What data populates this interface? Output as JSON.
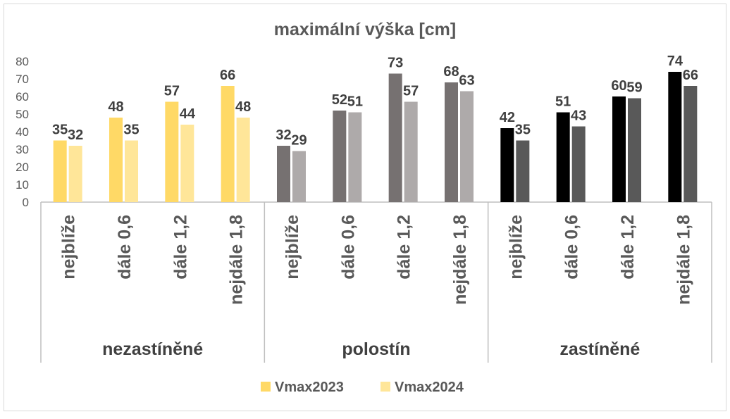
{
  "chart_data": {
    "type": "bar",
    "title": "maximální výška [cm]",
    "xlabel": "",
    "ylabel": "",
    "ylim": [
      0,
      80
    ],
    "yticks": [
      0,
      10,
      20,
      30,
      40,
      50,
      60,
      70,
      80
    ],
    "grid": false,
    "legend_position": "bottom",
    "groups": [
      "nezastíněné",
      "polostín",
      "zastíněné"
    ],
    "categories": [
      "nejblíže",
      "dále 0,6",
      "dále 1,2",
      "nejdále 1,8",
      "nejblíže",
      "dále 0,6",
      "dále 1,2",
      "nejdále 1,8",
      "nejblíže",
      "dále 0,6",
      "dále 1,2",
      "nejdále 1,8"
    ],
    "series": [
      {
        "name": "Vmax2023",
        "values": [
          35,
          48,
          57,
          66,
          32,
          52,
          73,
          68,
          42,
          51,
          60,
          74
        ]
      },
      {
        "name": "Vmax2024",
        "values": [
          32,
          35,
          44,
          48,
          29,
          51,
          57,
          63,
          35,
          43,
          59,
          66
        ]
      }
    ],
    "colors": {
      "group_series": [
        [
          "#ffd966",
          "#ffe699"
        ],
        [
          "#767171",
          "#aeaaaa"
        ],
        [
          "#000000",
          "#595959"
        ]
      ],
      "legend": [
        "#ffd966",
        "#ffe699"
      ],
      "axis": "#bfbfbf",
      "text": "#404040"
    }
  }
}
